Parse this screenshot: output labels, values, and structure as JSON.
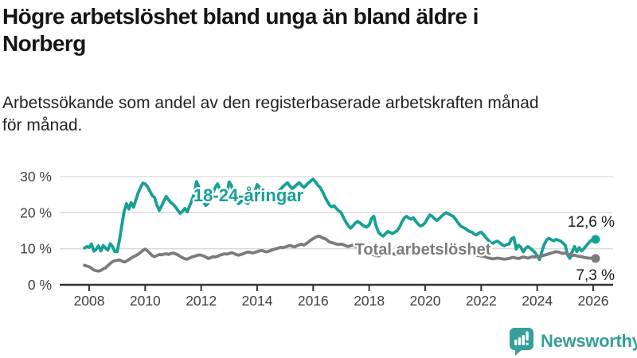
{
  "header": {
    "title": "Högre arbetslöshet bland unga än bland äldre i Norberg",
    "title_lines": [
      "Högre arbetslöshet bland unga än bland äldre i",
      "Norberg"
    ],
    "subtitle": "Arbetssökande som andel av den registerbaserade arbetskraften månad för månad.",
    "subtitle_lines": [
      "Arbetssökande som andel av den registerbaserade arbetskraften månad",
      "för månad."
    ]
  },
  "footer": {
    "brand": "Newsworthy",
    "brand_color": "#379f99"
  },
  "chart_data": {
    "type": "line",
    "title": "Högre arbetslöshet bland unga än bland äldre i Norberg",
    "subtitle": "Arbetssökande som andel av den registerbaserade arbetskraften månad för månad.",
    "grid": "horizontal",
    "legend_position": "inline-labels",
    "xlim": [
      2007.8,
      2026.8
    ],
    "ylim": [
      0,
      32
    ],
    "x_ticks": [
      2008,
      2010,
      2012,
      2014,
      2016,
      2018,
      2020,
      2022,
      2024,
      2026
    ],
    "y_ticks": [
      {
        "value": 0,
        "label": "0 %"
      },
      {
        "value": 10,
        "label": "10 %"
      },
      {
        "value": 20,
        "label": "20 %"
      },
      {
        "value": 30,
        "label": "30 %"
      }
    ],
    "x_start_year": 2007.8333,
    "x_step_years": 0.0833333,
    "series": [
      {
        "name": "18-24-åringar",
        "color": "#16a096",
        "end_value": 12.6,
        "end_label": "12,6 %",
        "values": [
          10.2,
          10.6,
          10.4,
          11.3,
          9.3,
          9.9,
          10.8,
          9.4,
          10.9,
          10.2,
          9.6,
          11.4,
          10.6,
          9.2,
          9.2,
          12.5,
          16.5,
          20.5,
          22.5,
          21.0,
          22.8,
          21.5,
          23.5,
          25.5,
          27.0,
          28.2,
          28.0,
          27.2,
          26.0,
          24.8,
          24.2,
          22.2,
          20.6,
          21.8,
          23.2,
          24.5,
          23.6,
          22.8,
          22.3,
          21.6,
          20.6,
          19.8,
          20.4,
          21.2,
          20.2,
          21.8,
          23.4,
          25.2,
          28.6,
          27.2,
          24.0,
          23.0,
          22.0,
          22.6,
          24.0,
          25.5,
          27.0,
          28.0,
          26.5,
          24.5,
          23.0,
          25.0,
          28.5,
          27.5,
          25.0,
          23.5,
          22.5,
          23.0,
          24.0,
          23.0,
          22.5,
          23.5,
          24.5,
          26.0,
          27.8,
          27.0,
          25.5,
          24.5,
          25.0,
          26.0,
          25.0,
          24.0,
          24.8,
          25.8,
          26.5,
          27.2,
          27.8,
          28.3,
          27.4,
          26.6,
          27.2,
          27.8,
          28.3,
          27.6,
          27.0,
          27.6,
          28.3,
          28.8,
          29.3,
          28.5,
          27.6,
          27.0,
          25.8,
          24.4,
          23.2,
          22.1,
          21.6,
          21.9,
          21.1,
          20.5,
          20.0,
          18.6,
          17.4,
          16.4,
          15.7,
          16.3,
          17.1,
          17.6,
          17.2,
          16.6,
          16.2,
          16.0,
          16.6,
          18.4,
          19.0,
          16.2,
          14.6,
          13.9,
          13.5,
          14.2,
          14.8,
          14.5,
          14.2,
          14.6,
          15.0,
          16.0,
          17.4,
          18.5,
          19.0,
          18.5,
          18.2,
          18.6,
          17.6,
          16.8,
          16.3,
          16.6,
          17.2,
          18.4,
          19.4,
          19.0,
          18.3,
          17.8,
          18.4,
          19.0,
          19.6,
          20.0,
          19.7,
          19.3,
          19.0,
          18.2,
          17.3,
          16.4,
          16.0,
          15.7,
          15.2,
          14.8,
          14.6,
          14.1,
          13.8,
          14.4,
          14.6,
          13.9,
          13.1,
          12.4,
          11.7,
          11.5,
          11.9,
          12.1,
          11.6,
          11.1,
          10.8,
          11.2,
          11.3,
          12.8,
          13.1,
          9.9,
          11.0,
          10.4,
          9.1,
          10.1,
          10.6,
          10.2,
          9.6,
          9.0,
          8.0,
          7.0,
          9.2,
          11.2,
          12.4,
          12.9,
          12.5,
          12.2,
          12.6,
          12.4,
          12.1,
          11.6,
          11.0,
          8.3,
          7.3,
          9.2,
          10.6,
          9.2,
          10.3,
          9.4,
          10.0,
          10.8,
          11.6,
          12.3,
          12.4,
          12.6
        ]
      },
      {
        "name": "Total arbetslöshet",
        "color": "#7b7b7b",
        "end_value": 7.3,
        "end_label": "7,3 %",
        "values": [
          5.4,
          5.2,
          5.0,
          4.6,
          4.1,
          3.9,
          3.8,
          4.0,
          4.4,
          4.7,
          5.3,
          5.9,
          6.4,
          6.7,
          6.8,
          6.9,
          6.6,
          6.3,
          6.6,
          7.0,
          7.4,
          7.8,
          8.1,
          8.5,
          9.0,
          9.5,
          9.9,
          9.4,
          8.8,
          8.1,
          7.8,
          8.1,
          8.4,
          8.3,
          8.5,
          8.6,
          8.4,
          8.7,
          8.8,
          8.6,
          8.3,
          7.9,
          7.5,
          7.2,
          7.1,
          7.4,
          7.7,
          7.9,
          8.1,
          8.3,
          8.2,
          8.0,
          7.7,
          7.3,
          7.5,
          7.8,
          7.7,
          7.9,
          8.2,
          8.4,
          8.6,
          8.5,
          8.7,
          8.9,
          8.7,
          8.4,
          8.2,
          8.4,
          8.6,
          8.9,
          9.1,
          9.0,
          8.8,
          9.0,
          9.2,
          9.4,
          9.5,
          9.3,
          9.1,
          9.3,
          9.6,
          9.8,
          10.0,
          10.2,
          10.4,
          10.3,
          10.5,
          10.7,
          10.9,
          10.7,
          10.5,
          10.8,
          11.1,
          11.3,
          11.0,
          11.4,
          11.9,
          12.4,
          12.8,
          13.2,
          13.5,
          13.4,
          13.0,
          12.8,
          12.4,
          11.9,
          11.7,
          11.5,
          11.3,
          11.2,
          11.3,
          11.1,
          10.8,
          10.6,
          10.8,
          11.0,
          10.7,
          10.3,
          9.9,
          9.5,
          9.2,
          9.0,
          8.8,
          8.5,
          8.3,
          8.1,
          8.0,
          8.2,
          8.4,
          8.3,
          8.5,
          8.7,
          8.6,
          8.5,
          8.4,
          8.3,
          8.5,
          8.6,
          8.5,
          8.4,
          8.6,
          8.8,
          8.7,
          8.6,
          8.8,
          9.0,
          9.2,
          9.4,
          9.8,
          10.1,
          10.0,
          9.9,
          10.0,
          9.8,
          9.7,
          9.6,
          9.5,
          9.6,
          9.7,
          9.5,
          9.3,
          9.1,
          8.9,
          8.8,
          8.6,
          8.5,
          8.4,
          8.3,
          8.2,
          8.1,
          8.0,
          7.9,
          7.7,
          7.5,
          7.3,
          7.2,
          7.3,
          7.4,
          7.3,
          7.2,
          7.1,
          7.2,
          7.3,
          7.5,
          7.6,
          7.4,
          7.3,
          7.5,
          7.7,
          7.6,
          7.4,
          7.6,
          7.8,
          7.7,
          7.9,
          7.8,
          8.0,
          8.2,
          8.4,
          8.6,
          8.8,
          9.0,
          9.2,
          9.1,
          8.9,
          8.7,
          8.8,
          8.6,
          8.3,
          8.1,
          8.2,
          8.0,
          7.9,
          7.8,
          7.6,
          7.5,
          7.4,
          7.4,
          7.4,
          7.3
        ]
      }
    ],
    "colors": {
      "grid": "#d9d9d9",
      "axis": "#333333",
      "tick_text": "#404040",
      "value_label_text": "#1a1a1a"
    }
  }
}
